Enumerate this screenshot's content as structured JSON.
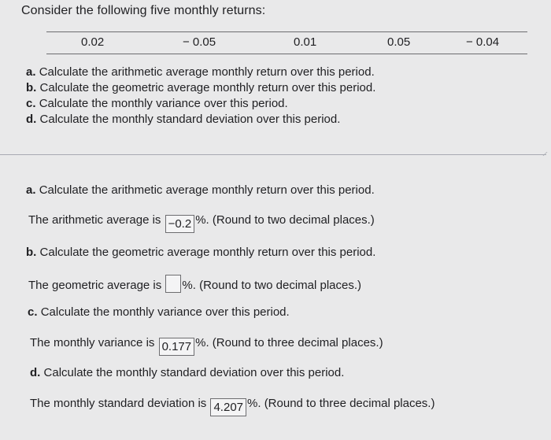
{
  "intro": "Consider the following five monthly returns:",
  "returns": [
    "0.02",
    "− 0.05",
    "0.01",
    "0.05",
    "− 0.04"
  ],
  "questions": [
    {
      "letter": "a.",
      "text": "Calculate the arithmetic average monthly return over this period."
    },
    {
      "letter": "b.",
      "text": "Calculate the geometric average monthly return over this period."
    },
    {
      "letter": "c.",
      "text": "Calculate the monthly variance over this period."
    },
    {
      "letter": "d.",
      "text": "Calculate the monthly standard deviation over this period."
    }
  ],
  "answers": {
    "a": {
      "part_letter": "a.",
      "part_text": "Calculate the arithmetic average monthly return over this period.",
      "prefix": "The arithmetic average is",
      "value": "−0.2",
      "suffix": "%.  (Round to two decimal places.)"
    },
    "b": {
      "part_letter": "b.",
      "part_text": "Calculate the geometric average monthly return over this period.",
      "prefix": "The geometric average is",
      "value": "",
      "suffix": "%.  (Round to two decimal places.)"
    },
    "c": {
      "part_letter": "c.",
      "part_text": "Calculate the monthly variance over this period.",
      "prefix": "The monthly variance is",
      "value": "0.177",
      "suffix": "%.  (Round to three decimal places.)"
    },
    "d": {
      "part_letter": "d.",
      "part_text": "Calculate the monthly standard deviation over this period.",
      "prefix": "The monthly standard deviation is",
      "value": "4.207",
      "suffix": "%.  (Round to three decimal places.)"
    }
  }
}
